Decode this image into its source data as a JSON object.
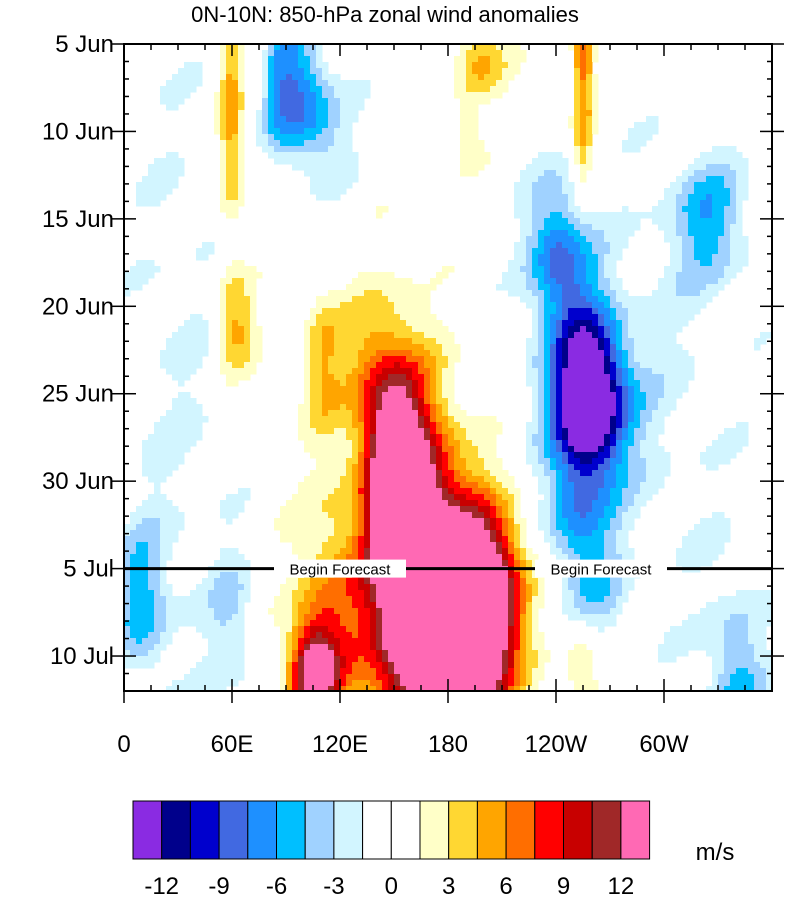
{
  "chart_data": {
    "type": "heatmap",
    "title": "0N-10N: 850-hPa zonal wind anomalies",
    "x_axis": {
      "description": "longitude",
      "ticks": [
        {
          "lon": 0,
          "label": "0"
        },
        {
          "lon": 60,
          "label": "60E"
        },
        {
          "lon": 120,
          "label": "120E"
        },
        {
          "lon": 180,
          "label": "180"
        },
        {
          "lon": 240,
          "label": "120W"
        },
        {
          "lon": 300,
          "label": "60W"
        }
      ],
      "range": [
        0,
        360
      ]
    },
    "y_axis": {
      "description": "date (time increases downward)",
      "ticks": [
        {
          "day": 0,
          "label": "5 Jun"
        },
        {
          "day": 5,
          "label": "10 Jun"
        },
        {
          "day": 10,
          "label": "15 Jun"
        },
        {
          "day": 15,
          "label": "20 Jun"
        },
        {
          "day": 20,
          "label": "25 Jun"
        },
        {
          "day": 25,
          "label": "30 Jun"
        },
        {
          "day": 30,
          "label": "5 Jul"
        },
        {
          "day": 35,
          "label": "10 Jul"
        }
      ],
      "range": [
        0,
        37
      ]
    },
    "forecast_line": {
      "day": 30,
      "labels": [
        "Begin Forecast",
        "Begin Forecast"
      ],
      "label_lons": [
        120,
        265
      ]
    },
    "colorbar": {
      "unit": "m/s",
      "levels": [
        -12,
        -10.5,
        -9,
        -7.5,
        -6,
        -4.5,
        -3,
        -1.5,
        0,
        1.5,
        3,
        4.5,
        6,
        7.5,
        9,
        10.5,
        12
      ],
      "tick_labels": [
        "-12",
        "-9",
        "-6",
        "-3",
        "0",
        "3",
        "6",
        "9",
        "12"
      ],
      "colors": [
        "#8a2be2",
        "#00008b",
        "#0000cd",
        "#4169e1",
        "#1e90ff",
        "#00bfff",
        "#a0d2ff",
        "#d2f5ff",
        "#ffffff",
        "#ffffff",
        "#ffffc8",
        "#ffd732",
        "#ffa500",
        "#ff6e00",
        "#ff0000",
        "#c80000",
        "#a02828",
        "#ff69b4"
      ]
    },
    "anomaly_features": [
      {
        "lon": 105,
        "day": 36,
        "lon_sigma": 9,
        "day_sigma": 2.0,
        "value": 12
      },
      {
        "lon": 158,
        "day": 30,
        "lon_sigma": 16,
        "day_sigma": 7,
        "value": 18
      },
      {
        "lon": 150,
        "day": 24,
        "lon_sigma": 10,
        "day_sigma": 4,
        "value": 9
      },
      {
        "lon": 195,
        "day": 34,
        "lon_sigma": 15,
        "day_sigma": 4,
        "value": 17
      },
      {
        "lon": 178,
        "day": 36,
        "lon_sigma": 10,
        "day_sigma": 2.5,
        "value": 10
      },
      {
        "lon": 180,
        "day": 29,
        "lon_sigma": 18,
        "day_sigma": 4,
        "value": 6
      },
      {
        "lon": 205,
        "day": 31,
        "lon_sigma": 13,
        "day_sigma": 3,
        "value": 7
      },
      {
        "lon": 115,
        "day": 33,
        "lon_sigma": 15,
        "day_sigma": 5,
        "value": 6
      },
      {
        "lon": 135,
        "day": 19,
        "lon_sigma": 12,
        "day_sigma": 3.5,
        "value": 4
      },
      {
        "lon": 110,
        "day": 18,
        "lon_sigma": 8,
        "day_sigma": 3,
        "value": 4
      },
      {
        "lon": 60,
        "day": 4,
        "lon_sigma": 5,
        "day_sigma": 5,
        "value": 6
      },
      {
        "lon": 62,
        "day": 16,
        "lon_sigma": 8,
        "day_sigma": 2,
        "value": 5
      },
      {
        "lon": 198,
        "day": 1,
        "lon_sigma": 10,
        "day_sigma": 1.5,
        "value": 5
      },
      {
        "lon": 255,
        "day": 0.5,
        "lon_sigma": 4,
        "day_sigma": 1.5,
        "value": 7
      },
      {
        "lon": 255,
        "day": 5,
        "lon_sigma": 4,
        "day_sigma": 2.5,
        "value": 5
      },
      {
        "lon": 255,
        "day": 36,
        "lon_sigma": 8,
        "day_sigma": 2,
        "value": 4
      },
      {
        "lon": 190,
        "day": 5,
        "lon_sigma": 6,
        "day_sigma": 1.5,
        "value": 3
      },
      {
        "lon": 60,
        "day": 33,
        "lon_sigma": 9,
        "day_sigma": 3,
        "value": -3
      },
      {
        "lon": 75,
        "day": 0,
        "lon_sigma": 5,
        "day_sigma": 4,
        "value": 4
      },
      {
        "lon": 90,
        "day": 2,
        "lon_sigma": 15,
        "day_sigma": 2.5,
        "value": -7
      },
      {
        "lon": 105,
        "day": 5,
        "lon_sigma": 15,
        "day_sigma": 2,
        "value": -4
      },
      {
        "lon": 240,
        "day": 12,
        "lon_sigma": 12,
        "day_sigma": 3,
        "value": -7
      },
      {
        "lon": 255,
        "day": 18,
        "lon_sigma": 12,
        "day_sigma": 4,
        "value": -5
      },
      {
        "lon": 255,
        "day": 20,
        "lon_sigma": 18,
        "day_sigma": 3,
        "value": -6
      },
      {
        "lon": 262,
        "day": 21,
        "lon_sigma": 13,
        "day_sigma": 3,
        "value": -8
      },
      {
        "lon": 250,
        "day": 27,
        "lon_sigma": 11,
        "day_sigma": 3,
        "value": -5
      },
      {
        "lon": 265,
        "day": 31,
        "lon_sigma": 11,
        "day_sigma": 3,
        "value": -3
      },
      {
        "lon": 325,
        "day": 10,
        "lon_sigma": 15,
        "day_sigma": 2.5,
        "value": -5
      },
      {
        "lon": 340,
        "day": 37,
        "lon_sigma": 12,
        "day_sigma": 4,
        "value": -5
      },
      {
        "lon": 10,
        "day": 32,
        "lon_sigma": 10,
        "day_sigma": 3,
        "value": -5
      },
      {
        "lon": 30,
        "day": 20,
        "lon_sigma": 20,
        "day_sigma": 15,
        "value": -1.5
      },
      {
        "lon": 300,
        "day": 20,
        "lon_sigma": 30,
        "day_sigma": 10,
        "value": -1.5
      }
    ]
  }
}
